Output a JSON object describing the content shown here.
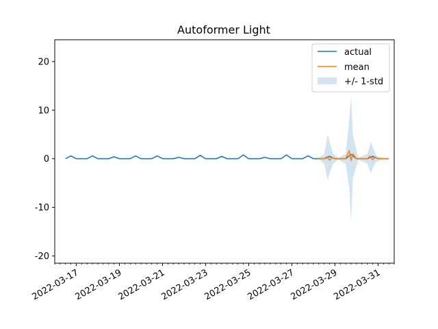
{
  "chart_data": {
    "type": "line",
    "title": "Autoformer Light",
    "xlabel": "",
    "ylabel": "",
    "x_start": "2022-03-16",
    "x_end": "2022-03-31",
    "xlim": [
      "2022-03-16T00:00",
      "2022-03-31T18:00"
    ],
    "ylim": [
      -21.5,
      24.5
    ],
    "yticks": [
      -20,
      -10,
      0,
      10,
      20
    ],
    "xticks": [
      "2022-03-17",
      "2022-03-19",
      "2022-03-21",
      "2022-03-23",
      "2022-03-25",
      "2022-03-27",
      "2022-03-29",
      "2022-03-31"
    ],
    "grid": false,
    "legend_position": "top-right",
    "legend": [
      "actual",
      "mean",
      "+/- 1-std"
    ],
    "colors": {
      "actual": "#1f77b4",
      "mean": "#ff7f0e",
      "band": "#1f77b4"
    },
    "series": [
      {
        "name": "actual",
        "points": [
          [
            "2022-03-16T12:00",
            0.0
          ],
          [
            "2022-03-16T18:00",
            0.6
          ],
          [
            "2022-03-17T00:00",
            0.0
          ],
          [
            "2022-03-17T12:00",
            0.0
          ],
          [
            "2022-03-17T18:00",
            0.6
          ],
          [
            "2022-03-18T00:00",
            0.0
          ],
          [
            "2022-03-18T12:00",
            0.0
          ],
          [
            "2022-03-18T18:00",
            0.4
          ],
          [
            "2022-03-19T00:00",
            0.0
          ],
          [
            "2022-03-19T12:00",
            0.0
          ],
          [
            "2022-03-19T18:00",
            0.6
          ],
          [
            "2022-03-20T00:00",
            0.0
          ],
          [
            "2022-03-20T12:00",
            0.0
          ],
          [
            "2022-03-20T18:00",
            0.6
          ],
          [
            "2022-03-21T00:00",
            0.0
          ],
          [
            "2022-03-21T12:00",
            0.0
          ],
          [
            "2022-03-21T18:00",
            0.3
          ],
          [
            "2022-03-22T00:00",
            0.0
          ],
          [
            "2022-03-22T12:00",
            0.0
          ],
          [
            "2022-03-22T18:00",
            0.7
          ],
          [
            "2022-03-23T00:00",
            0.0
          ],
          [
            "2022-03-23T12:00",
            0.0
          ],
          [
            "2022-03-23T18:00",
            0.5
          ],
          [
            "2022-03-24T00:00",
            0.0
          ],
          [
            "2022-03-24T12:00",
            0.0
          ],
          [
            "2022-03-24T18:00",
            0.8
          ],
          [
            "2022-03-25T00:00",
            0.0
          ],
          [
            "2022-03-25T12:00",
            0.0
          ],
          [
            "2022-03-25T18:00",
            0.3
          ],
          [
            "2022-03-26T00:00",
            0.0
          ],
          [
            "2022-03-26T12:00",
            0.0
          ],
          [
            "2022-03-26T18:00",
            0.8
          ],
          [
            "2022-03-27T00:00",
            0.0
          ],
          [
            "2022-03-27T12:00",
            0.0
          ],
          [
            "2022-03-27T18:00",
            0.6
          ],
          [
            "2022-03-28T00:00",
            0.0
          ],
          [
            "2022-03-28T12:00",
            0.0
          ],
          [
            "2022-03-28T18:00",
            0.5
          ],
          [
            "2022-03-29T00:00",
            0.0
          ],
          [
            "2022-03-29T12:00",
            0.0
          ],
          [
            "2022-03-29T18:00",
            0.9
          ],
          [
            "2022-03-30T00:00",
            0.0
          ],
          [
            "2022-03-30T12:00",
            0.0
          ],
          [
            "2022-03-30T18:00",
            0.5
          ],
          [
            "2022-03-31T00:00",
            0.0
          ],
          [
            "2022-03-31T12:00",
            0.0
          ]
        ]
      },
      {
        "name": "mean",
        "points": [
          [
            "2022-03-28T06:00",
            0.0
          ],
          [
            "2022-03-28T12:00",
            0.0
          ],
          [
            "2022-03-28T15:00",
            0.4
          ],
          [
            "2022-03-28T18:00",
            -0.3
          ],
          [
            "2022-03-28T21:00",
            0.3
          ],
          [
            "2022-03-29T00:00",
            0.0
          ],
          [
            "2022-03-29T12:00",
            0.0
          ],
          [
            "2022-03-29T16:00",
            1.7
          ],
          [
            "2022-03-29T18:00",
            -0.4
          ],
          [
            "2022-03-29T20:00",
            1.0
          ],
          [
            "2022-03-30T00:00",
            0.0
          ],
          [
            "2022-03-30T12:00",
            0.0
          ],
          [
            "2022-03-30T15:00",
            0.5
          ],
          [
            "2022-03-30T18:00",
            -0.2
          ],
          [
            "2022-03-30T21:00",
            0.3
          ],
          [
            "2022-03-31T00:00",
            0.0
          ],
          [
            "2022-03-31T12:00",
            0.0
          ]
        ]
      }
    ],
    "band": {
      "name": "+/- 1-std",
      "points": [
        [
          "2022-03-28T06:00",
          -0.2,
          0.2
        ],
        [
          "2022-03-28T12:00",
          -1.0,
          1.0
        ],
        [
          "2022-03-28T16:00",
          -4.5,
          5.0
        ],
        [
          "2022-03-28T18:00",
          -3.0,
          3.5
        ],
        [
          "2022-03-28T22:00",
          -1.0,
          1.0
        ],
        [
          "2022-03-29T04:00",
          -0.2,
          0.2
        ],
        [
          "2022-03-29T12:00",
          -1.0,
          1.0
        ],
        [
          "2022-03-29T16:00",
          -6.0,
          8.0
        ],
        [
          "2022-03-29T18:00",
          -13.0,
          13.0
        ],
        [
          "2022-03-29T20:00",
          -4.0,
          5.0
        ],
        [
          "2022-03-30T02:00",
          -0.2,
          0.2
        ],
        [
          "2022-03-30T12:00",
          -1.0,
          1.0
        ],
        [
          "2022-03-30T16:00",
          -3.0,
          3.5
        ],
        [
          "2022-03-30T18:00",
          -2.0,
          2.5
        ],
        [
          "2022-03-30T22:00",
          -0.6,
          0.6
        ],
        [
          "2022-03-31T06:00",
          -0.1,
          0.1
        ],
        [
          "2022-03-31T12:00",
          0.0,
          0.0
        ]
      ]
    }
  }
}
